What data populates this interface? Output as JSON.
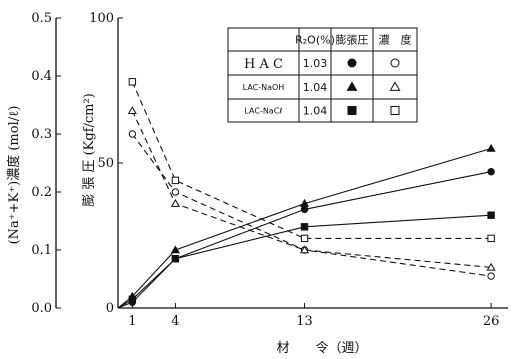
{
  "chart_data": {
    "type": "line",
    "xlabel": "材　　令（週）",
    "ylabel_left": "(Na⁺+K⁺)濃度 (mol/ℓ)",
    "ylabel_right": "膨 張 圧 (Kgf/cm²)",
    "x_ticks": [
      1,
      4,
      13,
      26
    ],
    "xlim": [
      0,
      28
    ],
    "y_left_ticks": [
      "0.0",
      "0.1",
      "0.2",
      "0.3",
      "0.4",
      "0.5"
    ],
    "y_left_lim": [
      0,
      0.5
    ],
    "y_right_ticks": [
      "0",
      "50",
      "100"
    ],
    "y_right_lim": [
      0,
      100
    ],
    "series": [
      {
        "key": "hac_pressure",
        "line": "solid",
        "marker": "circle-filled",
        "points": [
          [
            0,
            0
          ],
          [
            1,
            2
          ],
          [
            4,
            17
          ],
          [
            13,
            34
          ],
          [
            26,
            47
          ]
        ]
      },
      {
        "key": "naoh_pressure",
        "line": "solid",
        "marker": "triangle-filled",
        "points": [
          [
            0,
            0
          ],
          [
            1,
            4
          ],
          [
            4,
            20
          ],
          [
            13,
            36
          ],
          [
            26,
            55
          ]
        ]
      },
      {
        "key": "nacl_pressure",
        "line": "solid",
        "marker": "square-filled",
        "points": [
          [
            0,
            0
          ],
          [
            1,
            3
          ],
          [
            4,
            17
          ],
          [
            13,
            28
          ],
          [
            26,
            32
          ]
        ]
      },
      {
        "key": "hac_conc",
        "line": "dashed",
        "marker": "circle-open",
        "points": [
          [
            1,
            0.3
          ],
          [
            4,
            0.2
          ],
          [
            13,
            0.1
          ],
          [
            26,
            0.055
          ]
        ]
      },
      {
        "key": "naoh_conc",
        "line": "dashed",
        "marker": "triangle-open",
        "points": [
          [
            1,
            0.34
          ],
          [
            4,
            0.18
          ],
          [
            13,
            0.1
          ],
          [
            26,
            0.07
          ]
        ]
      },
      {
        "key": "nacl_conc",
        "line": "dashed",
        "marker": "square-open",
        "points": [
          [
            1,
            0.39
          ],
          [
            4,
            0.22
          ],
          [
            13,
            0.12
          ],
          [
            26,
            0.12
          ]
        ]
      }
    ],
    "legend_table": {
      "placement": "top-right",
      "headers": [
        "",
        "R₂O(%)",
        "膨張圧",
        "濃　度"
      ],
      "rows": [
        {
          "name": "H A C",
          "r2o": "1.03",
          "pressure_marker": "circle-filled",
          "conc_marker": "circle-open"
        },
        {
          "name": "LAC-NaOH",
          "r2o": "1.04",
          "pressure_marker": "triangle-filled",
          "conc_marker": "triangle-open"
        },
        {
          "name": "LAC-NaCℓ",
          "r2o": "1.04",
          "pressure_marker": "square-filled",
          "conc_marker": "square-open"
        }
      ]
    }
  }
}
